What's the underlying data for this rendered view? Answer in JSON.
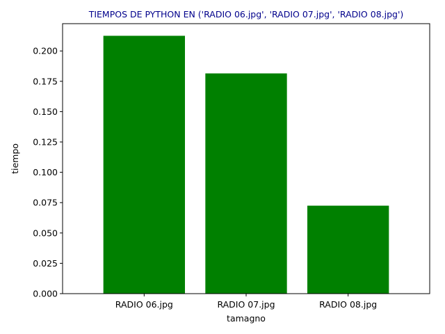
{
  "chart_data": {
    "type": "bar",
    "title": "TIEMPOS DE PYTHON EN ('RADIO 06.jpg', 'RADIO 07.jpg', 'RADIO 08.jpg')",
    "xlabel": "tamagno",
    "ylabel": "tiempo",
    "categories": [
      "RADIO 06.jpg",
      "RADIO 07.jpg",
      "RADIO 08.jpg"
    ],
    "values": [
      0.2125,
      0.1815,
      0.0725
    ],
    "ylim": [
      0,
      0.2225
    ],
    "yticks": [
      0.0,
      0.025,
      0.05,
      0.075,
      0.1,
      0.125,
      0.15,
      0.175,
      0.2
    ],
    "ytick_labels": [
      "0.000",
      "0.025",
      "0.050",
      "0.075",
      "0.100",
      "0.125",
      "0.150",
      "0.175",
      "0.200"
    ],
    "grid": false,
    "legend": "none",
    "colors": {
      "bar": "#008000",
      "title": "#00008b",
      "axis": "#000000"
    }
  }
}
